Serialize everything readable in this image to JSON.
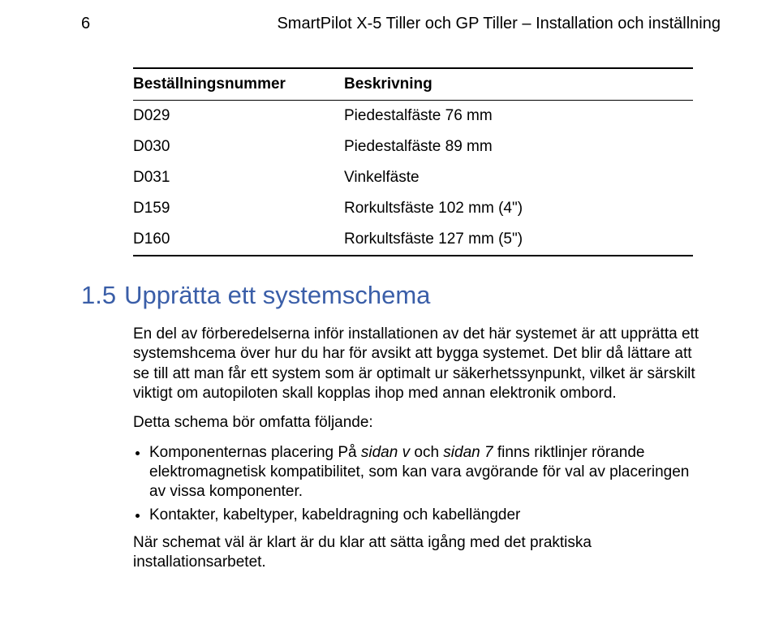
{
  "header": {
    "page_number": "6",
    "doc_title": "SmartPilot X-5 Tiller och GP Tiller – Installation och inställning"
  },
  "table": {
    "header": {
      "c1": "Beställningsnummer",
      "c2": "Beskrivning"
    },
    "rows": [
      {
        "c1": "D029",
        "c2": "Piedestalfäste 76 mm"
      },
      {
        "c1": "D030",
        "c2": "Piedestalfäste 89 mm"
      },
      {
        "c1": "D031",
        "c2": "Vinkelfäste"
      },
      {
        "c1": "D159",
        "c2": "Rorkultsfäste 102 mm (4\")"
      },
      {
        "c1": "D160",
        "c2": "Rorkultsfäste 127 mm (5\")"
      }
    ]
  },
  "section": {
    "number": "1.5",
    "title": "Upprätta ett systemschema",
    "heading_color": "#3a5ea8",
    "heading_fontsize": 31,
    "p1": "En del av förberedelserna inför installationen av det här systemet är att upprätta ett systemshcema över hur du har för avsikt att bygga systemet. Det blir då lättare att se till att man får ett system som är optimalt ur säkerhetssynpunkt, vilket är särskilt viktigt om autopiloten skall kopplas ihop med annan elektronik ombord.",
    "p2_lead": "Detta schema bör omfatta följande:",
    "bullets": [
      {
        "pre": "Komponenternas placering På ",
        "it1": "sidan v",
        "mid": " och ",
        "it2": "sidan 7",
        "post": " finns riktlinjer rörande elektromagnetisk kompatibilitet, som kan vara avgörande för val av placeringen av vissa komponenter."
      },
      {
        "plain": "Kontakter, kabeltyper, kabeldragning och kabellängder"
      }
    ],
    "p3": "När schemat väl är klart är du klar att sätta igång med det praktiska installationsarbetet."
  }
}
